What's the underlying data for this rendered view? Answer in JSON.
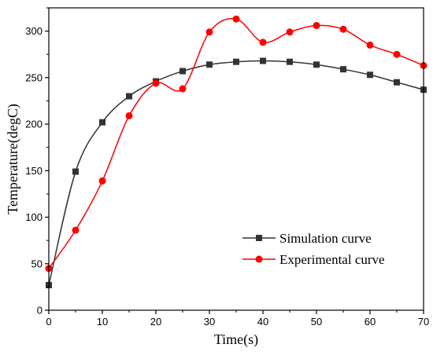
{
  "chart_data": {
    "type": "line",
    "xlabel": "Time(s)",
    "ylabel": "Temperature(degC)",
    "xlim": [
      0,
      70
    ],
    "ylim": [
      0,
      325
    ],
    "x_ticks": [
      0,
      10,
      20,
      30,
      40,
      50,
      60,
      70
    ],
    "y_ticks": [
      0,
      50,
      100,
      150,
      200,
      250,
      300
    ],
    "grid": false,
    "legend_position": "bottom-right",
    "series": [
      {
        "name": "Simulation curve",
        "color": "#333333",
        "marker": "square",
        "smooth": true,
        "x": [
          0,
          5,
          10,
          15,
          20,
          25,
          30,
          35,
          40,
          45,
          50,
          55,
          60,
          65,
          70
        ],
        "y": [
          27,
          149,
          202,
          230,
          246,
          257,
          264,
          267,
          268,
          267,
          264,
          259,
          253,
          245,
          237
        ]
      },
      {
        "name": "Experimental curve",
        "color": "#ff0000",
        "marker": "circle",
        "smooth": true,
        "x": [
          0,
          5,
          10,
          15,
          20,
          25,
          30,
          35,
          40,
          45,
          50,
          55,
          60,
          65,
          70
        ],
        "y": [
          45,
          86,
          139,
          209,
          244,
          238,
          299,
          313,
          288,
          299,
          306,
          302,
          285,
          275,
          263
        ]
      }
    ]
  }
}
